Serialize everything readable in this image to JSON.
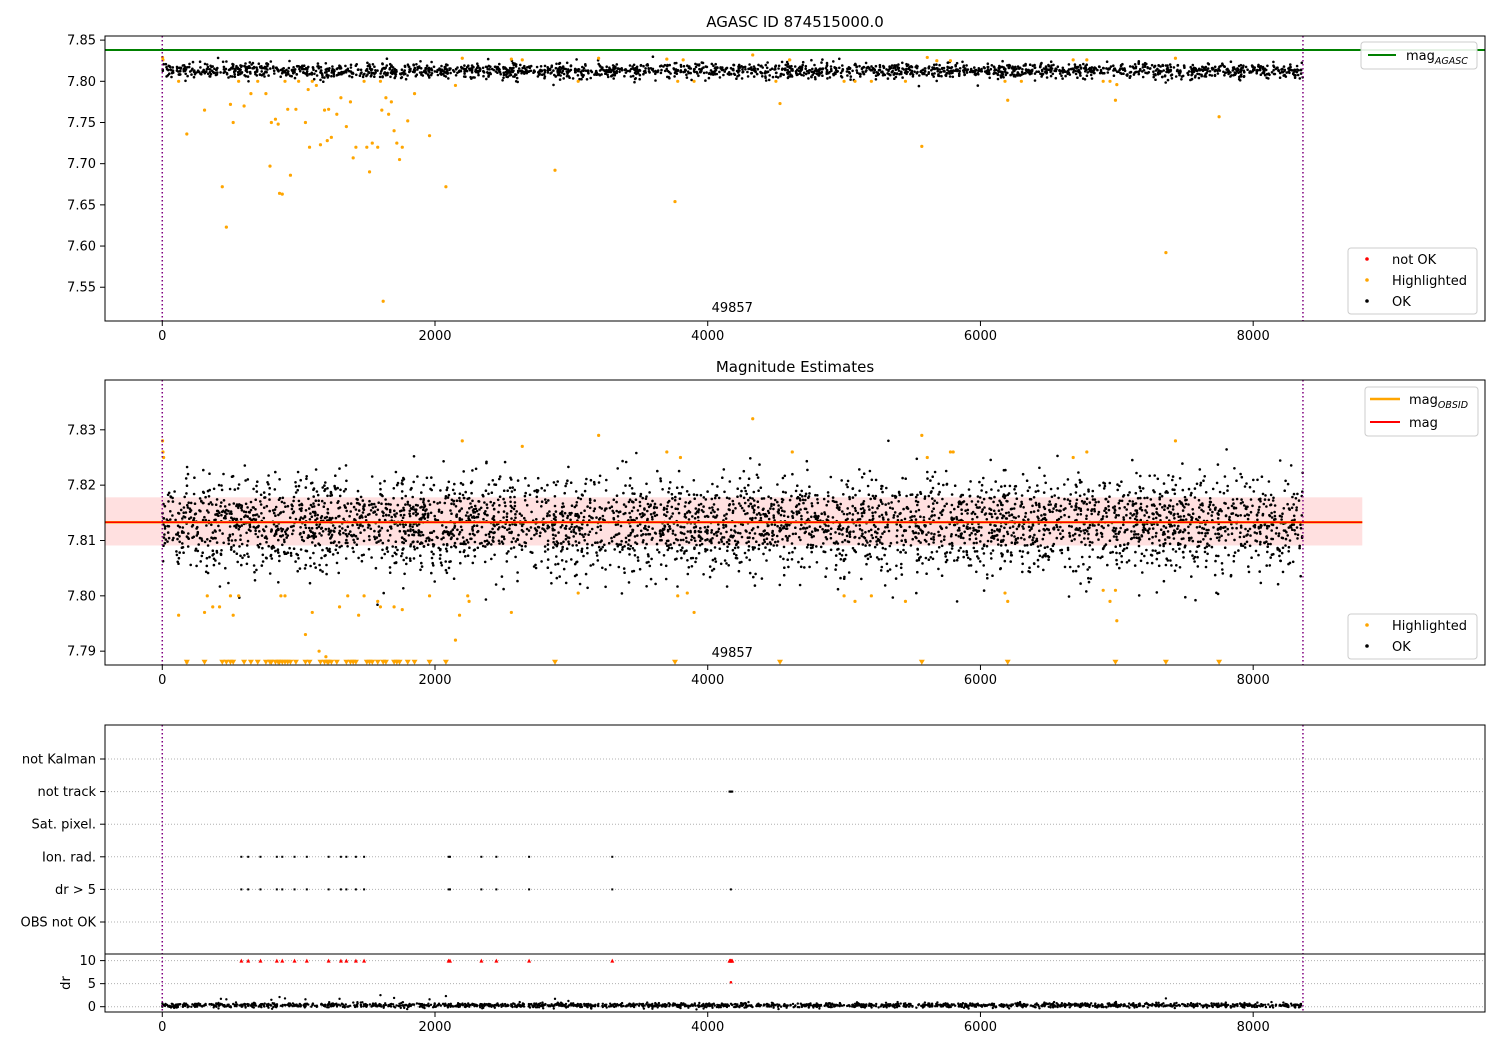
{
  "chart_data": [
    {
      "type": "scatter",
      "title": "AGASC ID 874515000.0",
      "xlabel": "",
      "ylabel": "",
      "xlim": [
        -420,
        9700
      ],
      "ylim": [
        7.509,
        7.855
      ],
      "x_ticks": [
        "0",
        "2000",
        "4000",
        "6000",
        "8000"
      ],
      "y_ticks": [
        "7.55",
        "7.60",
        "7.65",
        "7.70",
        "7.75",
        "7.80",
        "7.85"
      ],
      "grid": false,
      "legend_top": {
        "placement": "top-right",
        "entries": [
          {
            "name": "mag",
            "subscript": "AGASC",
            "color": "#008000"
          }
        ]
      },
      "legend_bottom": {
        "placement": "bottom-right",
        "entries": [
          {
            "name": "not OK",
            "color": "#ff0000"
          },
          {
            "name": "Highlighted",
            "color": "#ffa500"
          },
          {
            "name": "OK",
            "color": "#000000"
          }
        ]
      },
      "mag_agasc": 7.838,
      "vertical_markers": [
        0,
        8365
      ],
      "obsid_annotation": {
        "text": "49857",
        "x": 4180
      },
      "series": [
        {
          "name": "OK",
          "color": "#000000",
          "synthetic_band": {
            "x_start": 0,
            "x_end": 8365,
            "center": 7.813,
            "spread": 0.0045,
            "count": 2200
          }
        },
        {
          "name": "Highlighted",
          "color": "#ffa500",
          "points": [
            [
              2,
              7.829
            ],
            [
              5,
              7.826
            ],
            [
              120,
              7.8
            ],
            [
              180,
              7.736
            ],
            [
              310,
              7.765
            ],
            [
              440,
              7.672
            ],
            [
              470,
              7.623
            ],
            [
              500,
              7.772
            ],
            [
              520,
              7.75
            ],
            [
              560,
              7.8
            ],
            [
              600,
              7.77
            ],
            [
              650,
              7.785
            ],
            [
              700,
              7.8
            ],
            [
              760,
              7.785
            ],
            [
              790,
              7.697
            ],
            [
              800,
              7.75
            ],
            [
              830,
              7.754
            ],
            [
              850,
              7.748
            ],
            [
              860,
              7.664
            ],
            [
              880,
              7.663
            ],
            [
              900,
              7.8
            ],
            [
              920,
              7.766
            ],
            [
              940,
              7.686
            ],
            [
              980,
              7.766
            ],
            [
              1000,
              7.8
            ],
            [
              1050,
              7.75
            ],
            [
              1070,
              7.79
            ],
            [
              1080,
              7.72
            ],
            [
              1100,
              7.8
            ],
            [
              1130,
              7.795
            ],
            [
              1160,
              7.723
            ],
            [
              1190,
              7.765
            ],
            [
              1210,
              7.728
            ],
            [
              1220,
              7.766
            ],
            [
              1240,
              7.732
            ],
            [
              1280,
              7.76
            ],
            [
              1310,
              7.78
            ],
            [
              1350,
              7.745
            ],
            [
              1380,
              7.775
            ],
            [
              1400,
              7.707
            ],
            [
              1420,
              7.72
            ],
            [
              1480,
              7.8
            ],
            [
              1500,
              7.72
            ],
            [
              1520,
              7.69
            ],
            [
              1540,
              7.725
            ],
            [
              1580,
              7.72
            ],
            [
              1600,
              7.8
            ],
            [
              1610,
              7.765
            ],
            [
              1620,
              7.533
            ],
            [
              1640,
              7.78
            ],
            [
              1660,
              7.76
            ],
            [
              1680,
              7.775
            ],
            [
              1700,
              7.74
            ],
            [
              1720,
              7.725
            ],
            [
              1740,
              7.705
            ],
            [
              1760,
              7.72
            ],
            [
              1800,
              7.752
            ],
            [
              1850,
              7.785
            ],
            [
              1960,
              7.734
            ],
            [
              2080,
              7.672
            ],
            [
              2150,
              7.795
            ],
            [
              2200,
              7.828
            ],
            [
              2560,
              7.827
            ],
            [
              2640,
              7.826
            ],
            [
              2880,
              7.692
            ],
            [
              3050,
              7.8
            ],
            [
              3200,
              7.828
            ],
            [
              3700,
              7.827
            ],
            [
              3760,
              7.654
            ],
            [
              3780,
              7.8
            ],
            [
              3820,
              7.826
            ],
            [
              3900,
              7.8
            ],
            [
              4330,
              7.832
            ],
            [
              4500,
              7.8
            ],
            [
              4530,
              7.773
            ],
            [
              4600,
              7.826
            ],
            [
              5000,
              7.8
            ],
            [
              5080,
              7.8
            ],
            [
              5200,
              7.8
            ],
            [
              5450,
              7.8
            ],
            [
              5570,
              7.721
            ],
            [
              5610,
              7.829
            ],
            [
              5680,
              7.825
            ],
            [
              5780,
              7.825
            ],
            [
              6180,
              7.8
            ],
            [
              6200,
              7.777
            ],
            [
              6300,
              7.8
            ],
            [
              6680,
              7.826
            ],
            [
              6780,
              7.826
            ],
            [
              6900,
              7.8
            ],
            [
              6950,
              7.8
            ],
            [
              6990,
              7.777
            ],
            [
              7000,
              7.796
            ],
            [
              7360,
              7.592
            ],
            [
              7430,
              7.828
            ],
            [
              7750,
              7.757
            ]
          ]
        }
      ]
    },
    {
      "type": "scatter",
      "title": "Magnitude Estimates",
      "xlabel": "",
      "ylabel": "",
      "xlim": [
        -420,
        9700
      ],
      "ylim": [
        7.7875,
        7.839
      ],
      "x_ticks": [
        "0",
        "2000",
        "4000",
        "6000",
        "8000"
      ],
      "y_ticks": [
        "7.79",
        "7.80",
        "7.81",
        "7.82",
        "7.83"
      ],
      "grid": false,
      "legend_top": {
        "placement": "top-right",
        "entries": [
          {
            "name": "mag",
            "subscript": "OBSID",
            "color": "#ffa500"
          },
          {
            "name": "mag",
            "color": "#ff0000"
          }
        ]
      },
      "legend_bottom": {
        "placement": "bottom-right",
        "entries": [
          {
            "name": "Highlighted",
            "color": "#ffa500"
          },
          {
            "name": "OK",
            "color": "#000000"
          }
        ]
      },
      "mag_line": 7.8133,
      "mag_band": [
        7.8091,
        7.8178
      ],
      "mag_line_xrange": [
        -420,
        8800
      ],
      "vertical_markers": [
        0,
        8365
      ],
      "obsid_annotation": {
        "text": "49857",
        "x": 4180
      },
      "series": [
        {
          "name": "OK",
          "color": "#000000",
          "synthetic_band": {
            "x_start": 0,
            "x_end": 8365,
            "center": 7.8128,
            "spread": 0.0042,
            "count": 4200
          }
        },
        {
          "name": "Highlighted",
          "color": "#ffa500",
          "points": [
            [
              2,
              7.828
            ],
            [
              5,
              7.826
            ],
            [
              10,
              7.825
            ],
            [
              120,
              7.7965
            ],
            [
              180,
              7.788
            ],
            [
              310,
              7.797
            ],
            [
              330,
              7.8
            ],
            [
              370,
              7.798
            ],
            [
              420,
              7.798
            ],
            [
              500,
              7.8
            ],
            [
              520,
              7.7965
            ],
            [
              560,
              7.8
            ],
            [
              870,
              7.8
            ],
            [
              900,
              7.8
            ],
            [
              1050,
              7.793
            ],
            [
              1100,
              7.797
            ],
            [
              1150,
              7.79
            ],
            [
              1200,
              7.789
            ],
            [
              1300,
              7.798
            ],
            [
              1360,
              7.8
            ],
            [
              1440,
              7.7965
            ],
            [
              1480,
              7.8
            ],
            [
              1580,
              7.799
            ],
            [
              1600,
              7.798
            ],
            [
              1700,
              7.798
            ],
            [
              1760,
              7.7975
            ],
            [
              1960,
              7.8
            ],
            [
              2150,
              7.792
            ],
            [
              2180,
              7.7965
            ],
            [
              2200,
              7.828
            ],
            [
              2240,
              7.8
            ],
            [
              2250,
              7.799
            ],
            [
              2560,
              7.797
            ],
            [
              2640,
              7.827
            ],
            [
              3050,
              7.8005
            ],
            [
              3200,
              7.829
            ],
            [
              3700,
              7.826
            ],
            [
              3780,
              7.8
            ],
            [
              3800,
              7.825
            ],
            [
              3850,
              7.8005
            ],
            [
              3900,
              7.797
            ],
            [
              4330,
              7.832
            ],
            [
              4620,
              7.826
            ],
            [
              5000,
              7.8
            ],
            [
              5080,
              7.799
            ],
            [
              5200,
              7.8
            ],
            [
              5450,
              7.799
            ],
            [
              5570,
              7.829
            ],
            [
              5610,
              7.825
            ],
            [
              5780,
              7.826
            ],
            [
              5800,
              7.826
            ],
            [
              6180,
              7.8005
            ],
            [
              6200,
              7.799
            ],
            [
              6680,
              7.825
            ],
            [
              6780,
              7.826
            ],
            [
              6900,
              7.801
            ],
            [
              6950,
              7.799
            ],
            [
              6990,
              7.801
            ],
            [
              7000,
              7.7955
            ],
            [
              7430,
              7.828
            ]
          ]
        },
        {
          "name": "off-scale",
          "color": "#ffa500",
          "marker": "triangle-down",
          "x": [
            180,
            310,
            440,
            470,
            500,
            520,
            600,
            650,
            700,
            760,
            790,
            800,
            830,
            850,
            860,
            880,
            900,
            920,
            940,
            980,
            1050,
            1080,
            1160,
            1190,
            1210,
            1220,
            1240,
            1280,
            1350,
            1380,
            1400,
            1420,
            1500,
            1520,
            1540,
            1580,
            1620,
            1640,
            1700,
            1720,
            1740,
            1800,
            1850,
            1960,
            2080,
            2880,
            3760,
            4530,
            5570,
            6200,
            6990,
            7360,
            7750
          ]
        }
      ]
    },
    {
      "type": "scatter",
      "title": "",
      "xlabel": "",
      "ylabel": "dr",
      "xlim": [
        -420,
        9700
      ],
      "x_ticks": [
        "0",
        "2000",
        "4000",
        "6000",
        "8000"
      ],
      "flag_labels": [
        "not Kalman",
        "not track",
        "Sat. pixel.",
        "Ion. rad.",
        "dr > 5",
        "OBS not OK"
      ],
      "dr_ticks": [
        "10",
        "5",
        "0"
      ],
      "dr_ylim": [
        -0.5,
        11
      ],
      "vertical_markers": [
        0,
        8365
      ],
      "flags": {
        "not track": [
          4160,
          4165,
          4170,
          4175,
          4180
        ],
        "Ion. rad.": [
          580,
          630,
          720,
          840,
          880,
          970,
          1060,
          1220,
          1310,
          1350,
          1420,
          1480,
          2100,
          2110,
          2340,
          2450,
          2690,
          3300
        ],
        "dr > 5": [
          580,
          630,
          720,
          840,
          880,
          970,
          1060,
          1220,
          1310,
          1350,
          1420,
          1480,
          2100,
          2110,
          2340,
          2450,
          2690,
          3300,
          4170
        ]
      },
      "dr_series": {
        "large": {
          "color": "#ff0000",
          "x": [
            580,
            630,
            720,
            840,
            880,
            970,
            1060,
            1220,
            1310,
            1350,
            1420,
            1480,
            2100,
            2110,
            2340,
            2450,
            2690,
            3300,
            4160,
            4165,
            4170,
            4175,
            4180
          ],
          "value": 10
        },
        "outliers": {
          "color": "#ff0000",
          "points": [
            [
              4170,
              5.3
            ]
          ]
        },
        "ok": {
          "color": "#000000",
          "synthetic_band": {
            "x_start": 0,
            "x_end": 8365,
            "center": 0.3,
            "spread": 0.25,
            "count": 1800
          }
        },
        "spikes": {
          "color": "#000000",
          "points": [
            [
              430,
              1.7
            ],
            [
              470,
              1.6
            ],
            [
              800,
              1.5
            ],
            [
              860,
              2.1
            ],
            [
              900,
              1.8
            ],
            [
              1050,
              1.6
            ],
            [
              1300,
              1.7
            ],
            [
              1600,
              2.5
            ],
            [
              1700,
              1.9
            ],
            [
              1960,
              1.6
            ],
            [
              2080,
              2.3
            ],
            [
              2880,
              1.7
            ],
            [
              7360,
              1.8
            ]
          ]
        }
      }
    }
  ]
}
